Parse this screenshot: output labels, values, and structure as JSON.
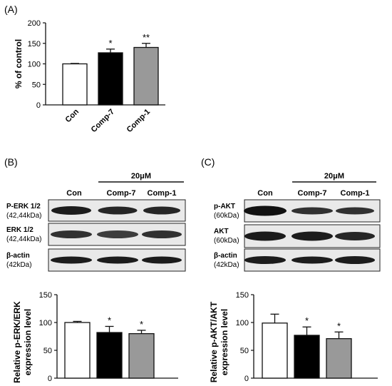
{
  "panels": {
    "a": "(A)",
    "b": "(B)",
    "c": "(C)"
  },
  "blots": {
    "b": {
      "bracket_label": "20μM",
      "lane_labels": [
        "Con",
        "Comp-7",
        "Comp-1"
      ],
      "rows": [
        {
          "label": "P-ERK 1/2",
          "sublabel": "(42,44kDa)"
        },
        {
          "label": "ERK 1/2",
          "sublabel": "(42,44kDa)"
        },
        {
          "label": "β-actin",
          "sublabel": "(42kDa)"
        }
      ]
    },
    "c": {
      "bracket_label": "20μM",
      "lane_labels": [
        "Con",
        "Comp-7",
        "Comp-1"
      ],
      "rows": [
        {
          "label": "p-AKT",
          "sublabel": "(60kDa)"
        },
        {
          "label": "AKT",
          "sublabel": "(60kDa)"
        },
        {
          "label": "β-actin",
          "sublabel": "(42kDa)"
        }
      ]
    }
  },
  "colors": {
    "con": "#ffffff",
    "comp7": "#000000",
    "comp1": "#999999",
    "axis": "#111111"
  },
  "chart_data": [
    {
      "id": "A",
      "type": "bar",
      "categories": [
        "Con",
        "Comp-7",
        "Comp-1"
      ],
      "values": [
        100,
        127,
        140
      ],
      "errors": [
        1,
        9,
        10
      ],
      "significance": [
        "",
        "*",
        "**"
      ],
      "ylabel": "% of control",
      "ylim": [
        0,
        200
      ],
      "yticks": [
        0,
        50,
        100,
        150,
        200
      ],
      "category_labels_rotated": true,
      "grid": false,
      "legend": "none"
    },
    {
      "id": "B",
      "type": "bar",
      "categories": [
        "Con",
        "Comp-7",
        "Comp-1"
      ],
      "values": [
        100,
        82,
        80
      ],
      "errors": [
        2,
        11,
        6
      ],
      "significance": [
        "",
        "*",
        "*"
      ],
      "ylabel_lines": [
        "Relative p-ERK/ERK",
        "expression level"
      ],
      "ylim": [
        0,
        150
      ],
      "yticks": [
        0,
        50,
        100,
        150
      ],
      "category_labels_rotated": false,
      "grid": false,
      "legend": "none"
    },
    {
      "id": "C",
      "type": "bar",
      "categories": [
        "Con",
        "Comp-7",
        "Comp-1"
      ],
      "values": [
        99,
        77,
        71
      ],
      "errors": [
        16,
        15,
        12
      ],
      "significance": [
        "",
        "*",
        "*"
      ],
      "ylabel_lines": [
        "Relative p-AKT/AKT",
        "expression level"
      ],
      "ylim": [
        0,
        150
      ],
      "yticks": [
        0,
        50,
        100,
        150
      ],
      "category_labels_rotated": false,
      "grid": false,
      "legend": "none"
    }
  ]
}
